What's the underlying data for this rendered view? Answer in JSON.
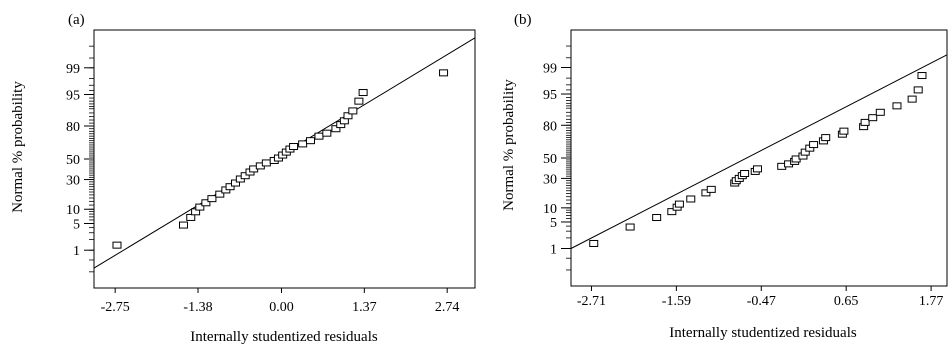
{
  "chart_data": [
    {
      "type": "scatter",
      "panel_label": "(a)",
      "xlabel": "Internally studentized residuals",
      "ylabel": "Normal % probability",
      "xticks": [
        -2.75,
        -1.38,
        0.0,
        1.37,
        2.74
      ],
      "xtick_labels": [
        "-2.75",
        "-1.38",
        "0.00",
        "1.37",
        "2.74"
      ],
      "xlim": [
        -3.1,
        3.2
      ],
      "yticks": [
        1,
        5,
        10,
        30,
        50,
        80,
        95,
        99
      ],
      "ytick_labels": [
        "1",
        "5",
        "10",
        "30",
        "50",
        "80",
        "95",
        "99"
      ],
      "ylim": [
        0.05,
        99.95
      ],
      "grid": false,
      "points": [
        [
          -2.72,
          1.4
        ],
        [
          -1.62,
          4.6
        ],
        [
          -1.5,
          6.8
        ],
        [
          -1.42,
          8.9
        ],
        [
          -1.35,
          11
        ],
        [
          -1.25,
          13.2
        ],
        [
          -1.15,
          15.6
        ],
        [
          -1.02,
          18.5
        ],
        [
          -0.92,
          21.5
        ],
        [
          -0.85,
          24
        ],
        [
          -0.76,
          27
        ],
        [
          -0.68,
          30.5
        ],
        [
          -0.6,
          33.5
        ],
        [
          -0.52,
          37
        ],
        [
          -0.46,
          40
        ],
        [
          -0.35,
          43
        ],
        [
          -0.25,
          46
        ],
        [
          -0.12,
          48.5
        ],
        [
          -0.05,
          51
        ],
        [
          0.02,
          54
        ],
        [
          0.08,
          57
        ],
        [
          0.14,
          60
        ],
        [
          0.2,
          62.5
        ],
        [
          0.35,
          65
        ],
        [
          0.48,
          68
        ],
        [
          0.62,
          72
        ],
        [
          0.75,
          74.5
        ],
        [
          0.9,
          78
        ],
        [
          0.98,
          81
        ],
        [
          1.04,
          83.5
        ],
        [
          1.1,
          86.5
        ],
        [
          1.18,
          89
        ],
        [
          1.28,
          93
        ],
        [
          1.35,
          95.5
        ],
        [
          2.68,
          98.6
        ]
      ],
      "fit_line": [
        [
          -3.1,
          0.27
        ],
        [
          3.2,
          99.9
        ]
      ]
    },
    {
      "type": "scatter",
      "panel_label": "(b)",
      "xlabel": "Internally studentized residuals",
      "ylabel": "Normal % probability",
      "xticks": [
        -2.71,
        -1.59,
        -0.47,
        0.65,
        1.77
      ],
      "xtick_labels": [
        "-2.71",
        "-1.59",
        "-0.47",
        "0.65",
        "1.77"
      ],
      "xlim": [
        -2.98,
        1.98
      ],
      "yticks": [
        1,
        5,
        10,
        30,
        50,
        80,
        95,
        99
      ],
      "ytick_labels": [
        "1",
        "5",
        "10",
        "30",
        "50",
        "80",
        "95",
        "99"
      ],
      "ylim": [
        0.05,
        99.95
      ],
      "grid": false,
      "points": [
        [
          -2.68,
          1.4
        ],
        [
          -2.2,
          3.8
        ],
        [
          -1.85,
          6.3
        ],
        [
          -1.65,
          8.4
        ],
        [
          -1.58,
          10.3
        ],
        [
          -1.55,
          11.8
        ],
        [
          -1.4,
          14.6
        ],
        [
          -1.2,
          18.5
        ],
        [
          -1.13,
          21
        ],
        [
          -0.82,
          26
        ],
        [
          -0.8,
          28
        ],
        [
          -0.76,
          30
        ],
        [
          -0.72,
          32.5
        ],
        [
          -0.69,
          34.5
        ],
        [
          -0.55,
          36.5
        ],
        [
          -0.52,
          39
        ],
        [
          -0.2,
          41.5
        ],
        [
          -0.11,
          44
        ],
        [
          -0.03,
          46.5
        ],
        [
          -0.01,
          49
        ],
        [
          0.08,
          52
        ],
        [
          0.11,
          56
        ],
        [
          0.17,
          60
        ],
        [
          0.22,
          63.5
        ],
        [
          0.35,
          67
        ],
        [
          0.38,
          70
        ],
        [
          0.6,
          73
        ],
        [
          0.62,
          75.5
        ],
        [
          0.88,
          79
        ],
        [
          0.9,
          82
        ],
        [
          1.0,
          85
        ],
        [
          1.1,
          88
        ],
        [
          1.32,
          91
        ],
        [
          1.52,
          93.5
        ],
        [
          1.6,
          96
        ],
        [
          1.65,
          98.3
        ]
      ],
      "fit_line": [
        [
          -2.98,
          1.0
        ],
        [
          1.98,
          99.6
        ]
      ]
    }
  ]
}
